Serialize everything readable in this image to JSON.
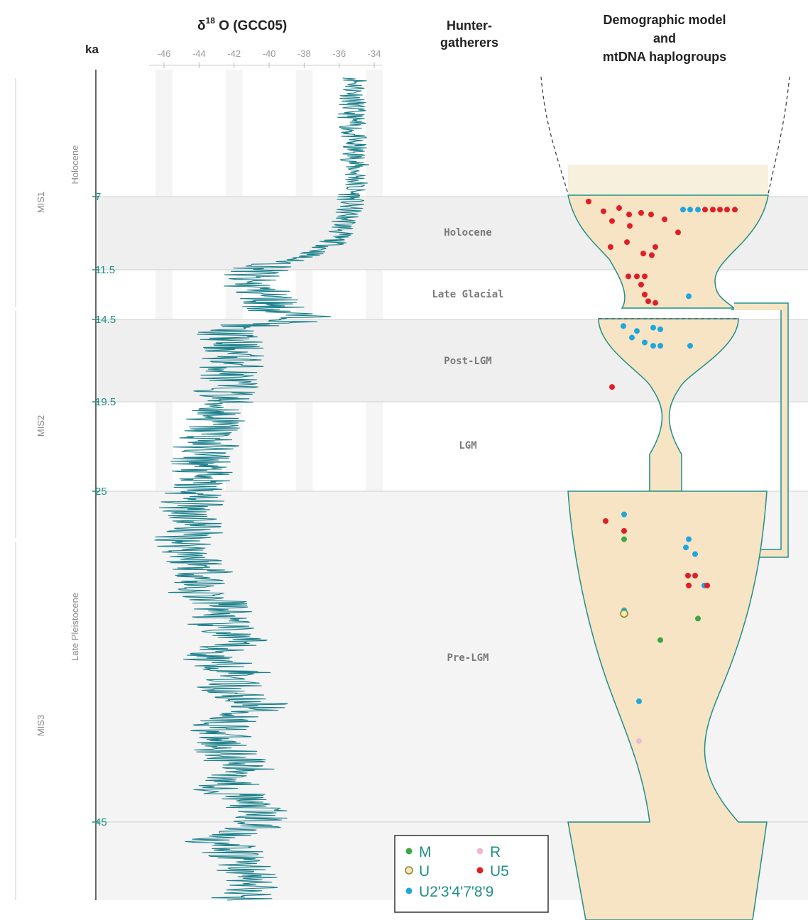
{
  "headers": {
    "ka": "ka",
    "d18o_prefix": "δ",
    "d18o_sup": "18",
    "d18o_rest": " O (GCC05)",
    "hunter_line1": "Hunter-",
    "hunter_line2": "gatherers",
    "demo_line1": "Demographic model",
    "demo_line2": "and",
    "demo_line3": "mtDNA haplogroups"
  },
  "chart_data": {
    "type": "line",
    "x_axis": {
      "ticks": [
        -46,
        -44,
        -42,
        -40,
        -38,
        -36,
        -34
      ],
      "range": [
        -47,
        -33.5
      ]
    },
    "y_axis": {
      "label": "ka",
      "ticks": [
        "7",
        "11.5",
        "14.5",
        "19.5",
        "25",
        "45"
      ],
      "direction": "age increasing downward"
    },
    "series": [
      {
        "ka": [
          0,
          2,
          4,
          6,
          7,
          8,
          9,
          10,
          10.5,
          11,
          11.5,
          12,
          12.5,
          13,
          13.5,
          14,
          14.5,
          15,
          16,
          17,
          18,
          19,
          20,
          21,
          22,
          23,
          24,
          25,
          26,
          27,
          28,
          29,
          30,
          31,
          32,
          33,
          34,
          35,
          36,
          37,
          38,
          39,
          40,
          41,
          42,
          43,
          44,
          45,
          46,
          47,
          48,
          49
        ],
        "d18o": [
          -35,
          -35.3,
          -35.2,
          -35,
          -35.3,
          -35.5,
          -35.8,
          -36.5,
          -37.5,
          -39,
          -40.5,
          -41.5,
          -41,
          -40.2,
          -39.8,
          -39.5,
          -37.5,
          -42.5,
          -42.2,
          -42,
          -42.3,
          -42.5,
          -42.8,
          -43.2,
          -43.5,
          -43.8,
          -44,
          -44.2,
          -44.5,
          -44,
          -44.8,
          -44.3,
          -43.5,
          -44.2,
          -42.5,
          -43,
          -42,
          -43.5,
          -41.5,
          -42.5,
          -40.5,
          -42.5,
          -43,
          -42,
          -41.5,
          -42.5,
          -41,
          -40.5,
          -43,
          -41.5,
          -41,
          -41.5
        ]
      }
    ]
  },
  "periods": [
    {
      "label": "Holocene"
    },
    {
      "label": "Late Glacial"
    },
    {
      "label": "Post-LGM"
    },
    {
      "label": "LGM"
    },
    {
      "label": "Pre-LGM"
    }
  ],
  "side_labels": {
    "mis1": "MIS1",
    "mis2": "MIS2",
    "mis3": "MIS3",
    "holocene": "Holocene",
    "late_pleistocene": "Late Pleistocene"
  },
  "haplogroup_colors": {
    "M": "#3aa845",
    "R": "#f0b8d6",
    "U": "#c8c83a",
    "U5": "#e01e26",
    "U2'3'4'7'8'9": "#1ea6df"
  },
  "samples": [
    {
      "hg": "U5",
      "ka": 7.3
    },
    {
      "hg": "U5",
      "ka": 7.7
    },
    {
      "hg": "U5",
      "ka": 8.1
    },
    {
      "hg": "U5",
      "ka": 7.9
    },
    {
      "hg": "U5",
      "ka": 8.0
    },
    {
      "hg": "U5",
      "ka": 8.5
    },
    {
      "hg": "U5",
      "ka": 8.4
    },
    {
      "hg": "U5",
      "ka": 8.8
    },
    {
      "hg": "U5",
      "ka": 8.1
    },
    {
      "hg": "U2'3'4'7'8'9",
      "ka": 7.8
    },
    {
      "hg": "U2'3'4'7'8'9",
      "ka": 7.8
    },
    {
      "hg": "U2'3'4'7'8'9",
      "ka": 7.8
    },
    {
      "hg": "U5",
      "ka": 7.8
    },
    {
      "hg": "U5",
      "ka": 7.8
    },
    {
      "hg": "U5",
      "ka": 7.8
    },
    {
      "hg": "U5",
      "ka": 7.8
    },
    {
      "hg": "U5",
      "ka": 7.8
    },
    {
      "hg": "U5",
      "ka": 9.2
    },
    {
      "hg": "U5",
      "ka": 9.8
    },
    {
      "hg": "U5",
      "ka": 10.1
    },
    {
      "hg": "U5",
      "ka": 10.5
    },
    {
      "hg": "U5",
      "ka": 10.1
    },
    {
      "hg": "U5",
      "ka": 10.6
    },
    {
      "hg": "U5",
      "ka": 11.9
    },
    {
      "hg": "U5",
      "ka": 11.9
    },
    {
      "hg": "U5",
      "ka": 11.9
    },
    {
      "hg": "U5",
      "ka": 12.4
    },
    {
      "hg": "U5",
      "ka": 13.0
    },
    {
      "hg": "U5",
      "ka": 13.4
    },
    {
      "hg": "U5",
      "ka": 13.5
    },
    {
      "hg": "U2'3'4'7'8'9",
      "ka": 13.1
    },
    {
      "hg": "U2'3'4'7'8'9",
      "ka": 14.9
    },
    {
      "hg": "U2'3'4'7'8'9",
      "ka": 15.2
    },
    {
      "hg": "U2'3'4'7'8'9",
      "ka": 15.0
    },
    {
      "hg": "U2'3'4'7'8'9",
      "ka": 15.1
    },
    {
      "hg": "U2'3'4'7'8'9",
      "ka": 15.6
    },
    {
      "hg": "U2'3'4'7'8'9",
      "ka": 15.9
    },
    {
      "hg": "U2'3'4'7'8'9",
      "ka": 16.1
    },
    {
      "hg": "U2'3'4'7'8'9",
      "ka": 16.1
    },
    {
      "hg": "U2'3'4'7'8'9",
      "ka": 16.1
    },
    {
      "hg": "U5",
      "ka": 18.6
    },
    {
      "hg": "U2'3'4'7'8'9",
      "ka": 26.4
    },
    {
      "hg": "U5",
      "ka": 26.8
    },
    {
      "hg": "U5",
      "ka": 27.4
    },
    {
      "hg": "M",
      "ka": 27.9
    },
    {
      "hg": "U2'3'4'7'8'9",
      "ka": 27.9
    },
    {
      "hg": "U2'3'4'7'8'9",
      "ka": 28.4
    },
    {
      "hg": "U2'3'4'7'8'9",
      "ka": 28.8
    },
    {
      "hg": "U5",
      "ka": 30.1
    },
    {
      "hg": "U5",
      "ka": 30.1
    },
    {
      "hg": "U2'3'4'7'8'9",
      "ka": 30.7
    },
    {
      "hg": "U5",
      "ka": 30.7
    },
    {
      "hg": "U5",
      "ka": 30.7
    },
    {
      "hg": "U2'3'4'7'8'9",
      "ka": 32.2
    },
    {
      "hg": "U",
      "ka": 32.4
    },
    {
      "hg": "M",
      "ka": 32.7
    },
    {
      "hg": "M",
      "ka": 34.0
    },
    {
      "hg": "U2'3'4'7'8'9",
      "ka": 37.7
    },
    {
      "hg": "R",
      "ka": 40.1
    }
  ],
  "legend": [
    {
      "hg": "M",
      "label": "M"
    },
    {
      "hg": "R",
      "label": "R"
    },
    {
      "hg": "U",
      "label": "U"
    },
    {
      "hg": "U5",
      "label": "U5"
    },
    {
      "hg": "U2'3'4'7'8'9",
      "label": "U2'3'4'7'8'9"
    }
  ]
}
